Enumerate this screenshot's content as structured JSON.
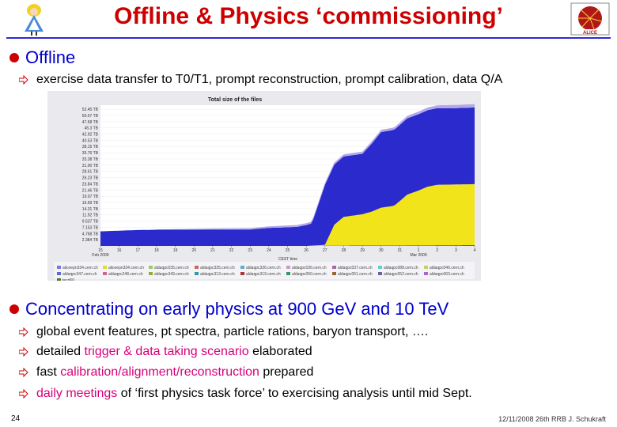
{
  "title": "Offline & Physics ‘commissioning’",
  "bullet1": {
    "label": "Offline",
    "sub": "exercise data transfer to T0/T1, prompt reconstruction, prompt calibration, data Q/A"
  },
  "chart_data": {
    "type": "area",
    "title": "Total size of the files",
    "xlabel": "CEST time",
    "ylabel": "",
    "xticks": [
      "15",
      "16",
      "17",
      "18",
      "19",
      "20",
      "21",
      "22",
      "23",
      "24",
      "25",
      "26",
      "27",
      "28",
      "29",
      "30",
      "31",
      "1",
      "2",
      "3",
      "4"
    ],
    "xtick_notes": [
      "Feb 2009",
      "Mar 2009"
    ],
    "yticks": [
      "2.384 TB",
      "4.768 TB",
      "7.153 TB",
      "9.537 TB",
      "11.92 TB",
      "14.31 TB",
      "16.69 TB",
      "19.07 TB",
      "21.46 TB",
      "23.84 TB",
      "26.23 TB",
      "28.61 TB",
      "31.00 TB",
      "33.38 TB",
      "35.76 TB",
      "38.15 TB",
      "40.53 TB",
      "42.92 TB",
      "45.3 TB",
      "47.68 TB",
      "50.07 TB",
      "52.45 TB"
    ],
    "series": [
      {
        "name": "series_blue",
        "color": "#2a2acd",
        "x": [
          0,
          2,
          3,
          6,
          8,
          9,
          10.5,
          11,
          11.3,
          12,
          13,
          14,
          15,
          16,
          17,
          18,
          19,
          20
        ],
        "values": [
          5.6,
          6.1,
          6.2,
          6.3,
          6.3,
          6.9,
          7.3,
          8,
          8.5,
          23,
          23.2,
          23.2,
          29,
          29.2,
          29.3,
          29.4,
          29.3,
          29.4
        ]
      },
      {
        "name": "series_yellow",
        "color": "#f2e41a",
        "x": [
          0,
          11,
          12,
          12.5,
          13,
          14,
          14.5,
          15,
          15.7,
          16,
          16.4,
          17,
          17.5,
          18,
          19,
          20
        ],
        "values": [
          0,
          0,
          0.3,
          8,
          11,
          12,
          13,
          14.5,
          15.2,
          17,
          19.5,
          21,
          22.5,
          23.2,
          23.3,
          23.4
        ]
      },
      {
        "name": "series_lavender",
        "color": "#b3a8e8",
        "x": [
          0,
          2,
          5,
          6,
          9,
          10,
          13,
          16,
          18,
          20
        ],
        "values": [
          0,
          0,
          0.3,
          0.4,
          0.6,
          0.7,
          0.8,
          0.9,
          1.1,
          1.3
        ]
      },
      {
        "name": "series_green",
        "color": "#4a7a30",
        "x": [
          0,
          11,
          12,
          20
        ],
        "values": [
          0,
          0,
          0.1,
          0.3
        ]
      }
    ],
    "legend": [
      {
        "label": "aliceepn334.cern.ch",
        "color": "#7777dd"
      },
      {
        "label": "aliceepn334.cern.ch",
        "color": "#dddd33"
      },
      {
        "label": "aldaqpc035.cern.ch",
        "color": "#99cc66"
      },
      {
        "label": "aldaqpc335.cern.ch",
        "color": "#cc6666"
      },
      {
        "label": "aldaqpc336.cern.ch",
        "color": "#66aacc"
      },
      {
        "label": "aldaqpc036.cern.ch",
        "color": "#cc99cc"
      },
      {
        "label": "aldaqpc037.cern.ch",
        "color": "#aa66aa"
      },
      {
        "label": "aldaqpc088.cern.ch",
        "color": "#66cccc"
      },
      {
        "label": "aldaqpc046.cern.ch",
        "color": "#cccc66"
      },
      {
        "label": "aldaqpc347.cern.ch",
        "color": "#6666cc"
      },
      {
        "label": "aldaqpc248.cern.ch",
        "color": "#cc6699"
      },
      {
        "label": "aldaqpc349.cern.ch",
        "color": "#99aa33"
      },
      {
        "label": "aldaqpc313.cern.ch",
        "color": "#3399aa"
      },
      {
        "label": "aldaqpc319.cern.ch",
        "color": "#aa3333"
      },
      {
        "label": "aldaqpc050.cern.ch",
        "color": "#339966"
      },
      {
        "label": "aldaqpc051.cern.ch",
        "color": "#996633"
      },
      {
        "label": "aldaqpc052.cern.ch",
        "color": "#666699"
      },
      {
        "label": "aldaqpc063.cern.ch",
        "color": "#aa66cc"
      },
      {
        "label": "tecd60",
        "color": "#4a7a30"
      }
    ]
  },
  "bullet2": {
    "label": "Concentrating on early physics at 900 GeV and 10 TeV",
    "items": [
      {
        "pre": "global event features, pt spectra, particle rations, baryon transport, ….",
        "hl": "",
        "post": ""
      },
      {
        "pre": "detailed ",
        "hl": "trigger & data taking scenario",
        "post": " elaborated"
      },
      {
        "pre": "fast ",
        "hl": "calibration/alignment/reconstruction",
        "post": " prepared"
      },
      {
        "pre": "",
        "hl": "daily meetings",
        "post": " of ‘first physics task force’ to exercising analysis until mid Sept."
      }
    ]
  },
  "footer": {
    "page": "24",
    "right": "12/11/2008 26th RRB J. Schukraft"
  },
  "colors": {
    "title": "#cc0000",
    "bullet": "#0000cc",
    "highlight": "#d6007a",
    "rule": "#2b2bd9"
  }
}
